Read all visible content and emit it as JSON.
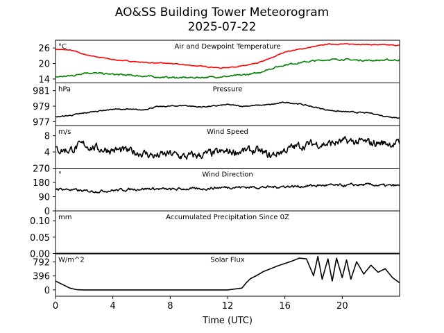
{
  "figure": {
    "title_line1": "AO&SS Building Tower Meteorogram",
    "title_line2": "2025-07-22"
  },
  "chart_data": {
    "type": "line",
    "xlabel": "Time (UTC)",
    "xlim": [
      0,
      24
    ],
    "x_ticks": [
      0,
      4,
      8,
      12,
      16,
      20
    ],
    "panels": [
      {
        "id": "temperature",
        "title": "Air and Dewpoint Temperature",
        "unit": "°C",
        "ylim": [
          12.5,
          29
        ],
        "yticks": [
          14,
          20,
          26
        ],
        "series": [
          {
            "name": "Air Temperature",
            "color": "#ff0000",
            "noise": 0.15,
            "x": [
              0,
              1,
              1.5,
              2,
              3,
              4,
              5,
              6,
              7,
              8,
              9,
              10,
              11,
              11.5,
              12,
              13,
              14,
              15,
              16,
              17,
              18,
              19,
              20,
              21,
              22,
              23,
              24
            ],
            "y": [
              25.5,
              25.2,
              24.5,
              23.5,
              22.5,
              21.5,
              21,
              20.5,
              20.2,
              20,
              19.5,
              19,
              18.6,
              18.2,
              18.5,
              19,
              20,
              22,
              24.5,
              25.5,
              26.5,
              27.5,
              27.5,
              27.5,
              27.3,
              27.2,
              27.0
            ]
          },
          {
            "name": "Dewpoint",
            "color": "#008000",
            "noise": 0.3,
            "x": [
              0,
              1,
              1.5,
              2,
              3,
              4,
              5,
              6,
              7,
              8,
              9,
              10,
              11,
              12,
              13,
              14,
              15,
              16,
              17,
              18,
              19,
              20,
              21,
              22,
              23,
              24
            ],
            "y": [
              14.8,
              15.2,
              15.6,
              16.5,
              16.2,
              15.8,
              15.5,
              15.2,
              14.8,
              14.6,
              14.5,
              14.6,
              14.8,
              15,
              15.5,
              16.2,
              18,
              19.5,
              20.3,
              21,
              21.5,
              21.6,
              21.3,
              21.2,
              21.3,
              21.4
            ]
          }
        ]
      },
      {
        "id": "pressure",
        "title": "Pressure",
        "unit": "hPa",
        "ylim": [
          976.5,
          982
        ],
        "yticks": [
          977,
          979,
          981
        ],
        "series": [
          {
            "name": "Pressure",
            "color": "#000000",
            "noise": 0.07,
            "x": [
              0,
              1,
              2,
              3,
              4,
              5,
              6,
              7,
              8,
              9,
              10,
              11,
              12,
              13,
              14,
              15,
              16,
              17,
              18,
              19,
              20,
              21,
              22,
              23,
              24
            ],
            "y": [
              977.6,
              977.8,
              978.1,
              978.4,
              978.6,
              978.6,
              978.5,
              978.9,
              979,
              979.1,
              978.9,
              979,
              979.2,
              979.0,
              979.1,
              979.2,
              979.5,
              979.3,
              978.9,
              978.5,
              978.3,
              978.2,
              978.1,
              977.7,
              977.5
            ]
          }
        ]
      },
      {
        "id": "wind_speed",
        "title": "Wind Speed",
        "unit": "m/s",
        "ylim": [
          0,
          10.5
        ],
        "yticks": [
          0,
          4,
          8
        ],
        "series": [
          {
            "name": "Wind Speed",
            "color": "#000000",
            "noise": 1.0,
            "x": [
              0,
              1,
              2,
              3,
              4,
              5,
              6,
              7,
              8,
              9,
              10,
              11,
              12,
              13,
              14,
              15,
              16,
              17,
              18,
              19,
              20,
              21,
              22,
              23,
              24
            ],
            "y": [
              4.5,
              4.5,
              5.8,
              4.8,
              4.5,
              4.2,
              3.8,
              3.0,
              3.5,
              2.8,
              3.2,
              3.6,
              4.0,
              4.2,
              4.3,
              3.0,
              4.5,
              5.5,
              6.0,
              6.0,
              6.5,
              6.5,
              6.2,
              6.2,
              6.0
            ]
          }
        ]
      },
      {
        "id": "wind_direction",
        "title": "Wind Direction",
        "unit": "°",
        "ylim": [
          0,
          270
        ],
        "yticks": [
          0,
          90,
          180,
          270
        ],
        "series": [
          {
            "name": "Wind Direction",
            "color": "#000000",
            "noise": 8,
            "x": [
              0,
              1,
              2,
              3,
              4,
              5,
              6,
              7,
              8,
              9,
              10,
              11,
              12,
              13,
              14,
              15,
              16,
              17,
              18,
              19,
              20,
              21,
              22,
              23,
              24
            ],
            "y": [
              140,
              135,
              125,
              125,
              130,
              135,
              140,
              140,
              135,
              140,
              138,
              145,
              150,
              150,
              150,
              150,
              155,
              155,
              160,
              162,
              160,
              165,
              165,
              160,
              160
            ]
          }
        ]
      },
      {
        "id": "precipitation",
        "title": "Accumulated Precipitation Since 0Z",
        "unit": "mm",
        "ylim": [
          0,
          0.13
        ],
        "yticks": [
          0.0,
          0.05,
          0.1
        ],
        "tick_decimals": 2,
        "series": [
          {
            "name": "Accumulated Precipitation",
            "color": "#000000",
            "noise": 0,
            "x": [
              0,
              24
            ],
            "y": [
              0,
              0
            ]
          }
        ]
      },
      {
        "id": "solar_flux",
        "title": "Solar Flux",
        "unit": "W/m^2",
        "ylim": [
          -180,
          1030
        ],
        "yticks": [
          0,
          396,
          792
        ],
        "series": [
          {
            "name": "Solar Flux",
            "color": "#000000",
            "noise": 0,
            "x": [
              0,
              0.5,
              1,
              1.5,
              2,
              4,
              6,
              8,
              10,
              12,
              13,
              13.3,
              13.6,
              14,
              14.5,
              15,
              15.5,
              16,
              16.5,
              17,
              17.5,
              18,
              18.3,
              18.6,
              19,
              19.3,
              19.6,
              20,
              20.3,
              20.6,
              21,
              21.5,
              22,
              22.5,
              23,
              23.5,
              24
            ],
            "y": [
              250,
              150,
              50,
              5,
              0,
              0,
              0,
              0,
              0,
              0,
              50,
              200,
              320,
              400,
              520,
              600,
              680,
              750,
              820,
              900,
              880,
              400,
              950,
              300,
              880,
              250,
              900,
              350,
              850,
              300,
              800,
              450,
              700,
              500,
              600,
              350,
              200
            ]
          }
        ]
      }
    ]
  }
}
